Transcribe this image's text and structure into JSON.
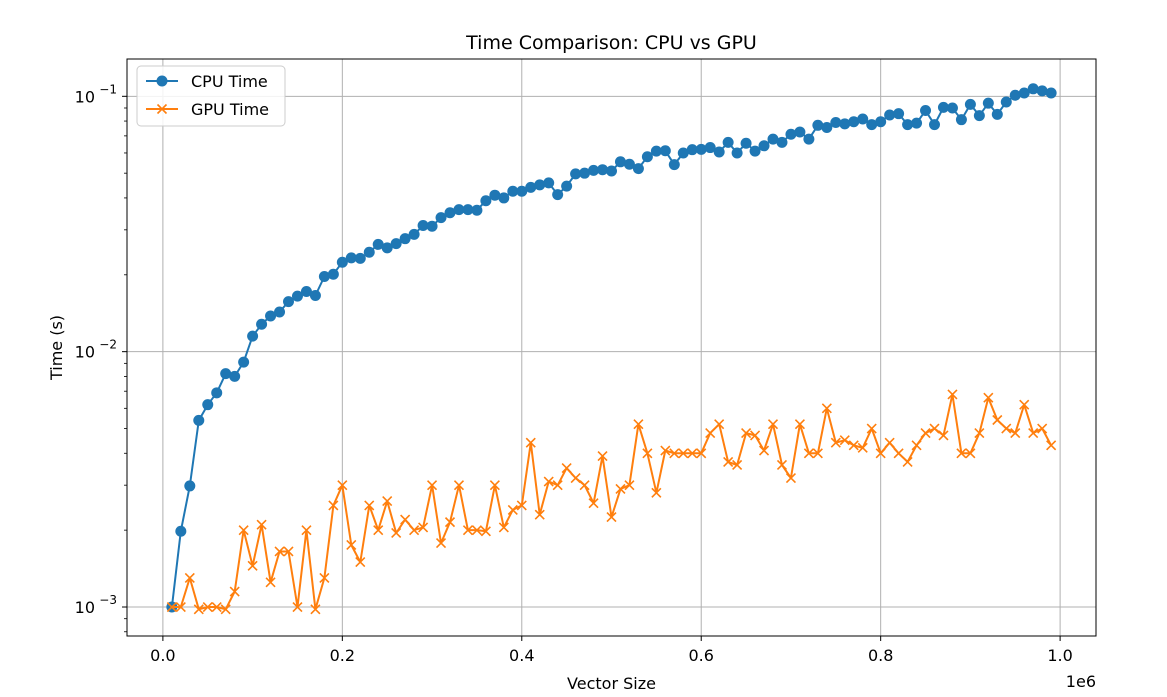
{
  "chart_data": {
    "type": "line",
    "title": "Time Comparison: CPU vs GPU",
    "xlabel": "Vector Size",
    "ylabel": "Time (s)",
    "x_offset_text": "1e6",
    "yscale": "log",
    "xlim": [
      -40000,
      1040000
    ],
    "ylim": [
      0.00077,
      0.14
    ],
    "x_ticks": [
      {
        "value": 0,
        "label": "0.0"
      },
      {
        "value": 200000,
        "label": "0.2"
      },
      {
        "value": 400000,
        "label": "0.4"
      },
      {
        "value": 600000,
        "label": "0.6"
      },
      {
        "value": 800000,
        "label": "0.8"
      },
      {
        "value": 1000000,
        "label": "1.0"
      }
    ],
    "y_ticks": [
      {
        "value": 0.001,
        "base": "10",
        "exp": "−3"
      },
      {
        "value": 0.01,
        "base": "10",
        "exp": "−2"
      },
      {
        "value": 0.1,
        "base": "10",
        "exp": "−1"
      }
    ],
    "grid": true,
    "legend_position": "upper-left",
    "x": [
      10000,
      20000,
      30000,
      40000,
      50000,
      60000,
      70000,
      80000,
      90000,
      100000,
      110000,
      120000,
      130000,
      140000,
      150000,
      160000,
      170000,
      180000,
      190000,
      200000,
      210000,
      220000,
      230000,
      240000,
      250000,
      260000,
      270000,
      280000,
      290000,
      300000,
      310000,
      320000,
      330000,
      340000,
      350000,
      360000,
      370000,
      380000,
      390000,
      400000,
      410000,
      420000,
      430000,
      440000,
      450000,
      460000,
      470000,
      480000,
      490000,
      500000,
      510000,
      520000,
      530000,
      540000,
      550000,
      560000,
      570000,
      580000,
      590000,
      600000,
      610000,
      620000,
      630000,
      640000,
      650000,
      660000,
      670000,
      680000,
      690000,
      700000,
      710000,
      720000,
      730000,
      740000,
      750000,
      760000,
      770000,
      780000,
      790000,
      800000,
      810000,
      820000,
      830000,
      840000,
      850000,
      860000,
      870000,
      880000,
      890000,
      900000,
      910000,
      920000,
      930000,
      940000,
      950000,
      960000,
      970000,
      980000,
      990000
    ],
    "series": [
      {
        "name": "CPU Time",
        "color": "#1f77b4",
        "marker": "circle",
        "values": [
          0.001,
          0.00198,
          0.00298,
          0.00538,
          0.0062,
          0.0069,
          0.0082,
          0.008,
          0.0091,
          0.0115,
          0.0128,
          0.0138,
          0.0143,
          0.0157,
          0.0165,
          0.0172,
          0.0166,
          0.0197,
          0.0201,
          0.0224,
          0.0233,
          0.0232,
          0.0245,
          0.0263,
          0.0255,
          0.0265,
          0.0277,
          0.0288,
          0.0312,
          0.031,
          0.0335,
          0.035,
          0.036,
          0.036,
          0.0358,
          0.039,
          0.041,
          0.04,
          0.0425,
          0.0425,
          0.044,
          0.045,
          0.0458,
          0.0412,
          0.0445,
          0.0497,
          0.05,
          0.0513,
          0.0516,
          0.051,
          0.0554,
          0.0542,
          0.0521,
          0.058,
          0.061,
          0.0612,
          0.054,
          0.06,
          0.0618,
          0.062,
          0.063,
          0.0605,
          0.066,
          0.06,
          0.0655,
          0.061,
          0.064,
          0.068,
          0.066,
          0.071,
          0.0725,
          0.068,
          0.077,
          0.0755,
          0.079,
          0.078,
          0.0795,
          0.0815,
          0.0775,
          0.0795,
          0.0845,
          0.0855,
          0.0775,
          0.0785,
          0.088,
          0.0775,
          0.0905,
          0.09,
          0.081,
          0.093,
          0.084,
          0.094,
          0.085,
          0.095,
          0.101,
          0.103,
          0.107,
          0.105,
          0.103
        ]
      },
      {
        "name": "GPU Time",
        "color": "#ff7f0e",
        "marker": "x",
        "values": [
          0.001,
          0.001,
          0.0013,
          0.00098,
          0.001,
          0.001,
          0.00098,
          0.00115,
          0.002,
          0.00145,
          0.0021,
          0.00125,
          0.00165,
          0.00165,
          0.001,
          0.002,
          0.00098,
          0.0013,
          0.0025,
          0.003,
          0.00175,
          0.0015,
          0.0025,
          0.002,
          0.0026,
          0.00195,
          0.0022,
          0.002,
          0.00205,
          0.003,
          0.00178,
          0.00215,
          0.003,
          0.002,
          0.002,
          0.00198,
          0.003,
          0.00205,
          0.0024,
          0.0025,
          0.0044,
          0.0023,
          0.0031,
          0.003,
          0.0035,
          0.0032,
          0.003,
          0.00255,
          0.0039,
          0.00225,
          0.0029,
          0.003,
          0.0052,
          0.004,
          0.0028,
          0.0041,
          0.004,
          0.004,
          0.004,
          0.004,
          0.0048,
          0.0052,
          0.0037,
          0.0036,
          0.0048,
          0.0047,
          0.0041,
          0.0052,
          0.0036,
          0.0032,
          0.0052,
          0.004,
          0.004,
          0.006,
          0.0044,
          0.0045,
          0.0043,
          0.0042,
          0.005,
          0.004,
          0.0044,
          0.004,
          0.0037,
          0.0043,
          0.0048,
          0.005,
          0.0047,
          0.0068,
          0.004,
          0.004,
          0.0048,
          0.0066,
          0.0054,
          0.005,
          0.0048,
          0.0062,
          0.0048,
          0.005,
          0.0043
        ]
      }
    ]
  }
}
